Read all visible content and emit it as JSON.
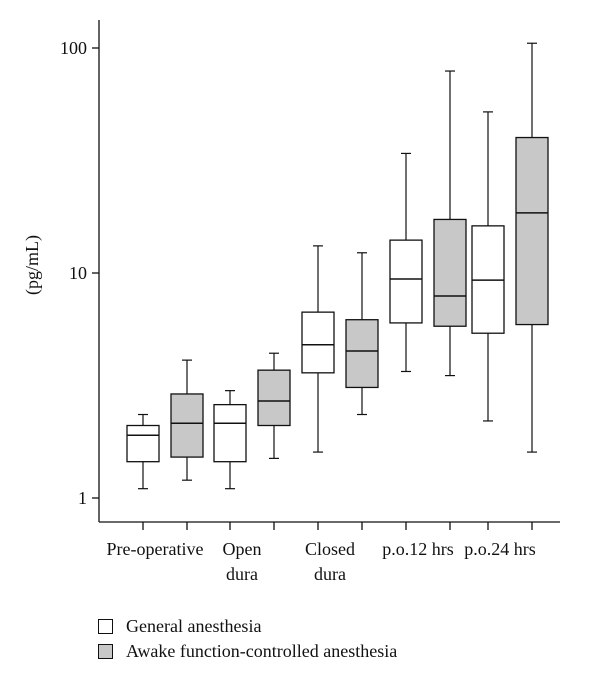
{
  "chart_data": {
    "type": "box",
    "ylabel": "(pg/mL)",
    "yscale": "log",
    "ylim": [
      0.8,
      120
    ],
    "yticks": [
      {
        "value": 1,
        "label": "1"
      },
      {
        "value": 10,
        "label": "10"
      },
      {
        "value": 100,
        "label": "100"
      }
    ],
    "categories": [
      [
        "Pre-operative"
      ],
      [
        "Open",
        "dura"
      ],
      [
        "Closed",
        "dura"
      ],
      [
        "p.o.12 hrs"
      ],
      [
        "p.o.24 hrs"
      ]
    ],
    "series": [
      {
        "name": "General anesthesia",
        "color": "#ffffff",
        "boxes": [
          {
            "min": 1.1,
            "q1": 1.45,
            "median": 1.9,
            "q3": 2.1,
            "max": 2.35
          },
          {
            "min": 1.1,
            "q1": 1.45,
            "median": 2.15,
            "q3": 2.6,
            "max": 3.0
          },
          {
            "min": 1.6,
            "q1": 3.6,
            "median": 4.8,
            "q3": 6.7,
            "max": 13.2
          },
          {
            "min": 3.65,
            "q1": 6.0,
            "median": 9.4,
            "q3": 14.0,
            "max": 34.0
          },
          {
            "min": 2.2,
            "q1": 5.4,
            "median": 9.3,
            "q3": 16.2,
            "max": 52.0
          }
        ]
      },
      {
        "name": "Awake function-controlled anesthesia",
        "color": "#c8c8c8",
        "boxes": [
          {
            "min": 1.2,
            "q1": 1.52,
            "median": 2.15,
            "q3": 2.9,
            "max": 4.1
          },
          {
            "min": 1.5,
            "q1": 2.1,
            "median": 2.7,
            "q3": 3.7,
            "max": 4.4
          },
          {
            "min": 2.35,
            "q1": 3.1,
            "median": 4.5,
            "q3": 6.2,
            "max": 12.3
          },
          {
            "min": 3.5,
            "q1": 5.8,
            "median": 7.9,
            "q3": 17.3,
            "max": 79.0
          },
          {
            "min": 1.6,
            "q1": 5.9,
            "median": 18.5,
            "q3": 40.0,
            "max": 105.0
          }
        ]
      }
    ],
    "legend_position": "bottom-left"
  },
  "legend": [
    {
      "label": "General anesthesia",
      "color": "#ffffff"
    },
    {
      "label": "Awake function-controlled anesthesia",
      "color": "#c8c8c8"
    }
  ]
}
